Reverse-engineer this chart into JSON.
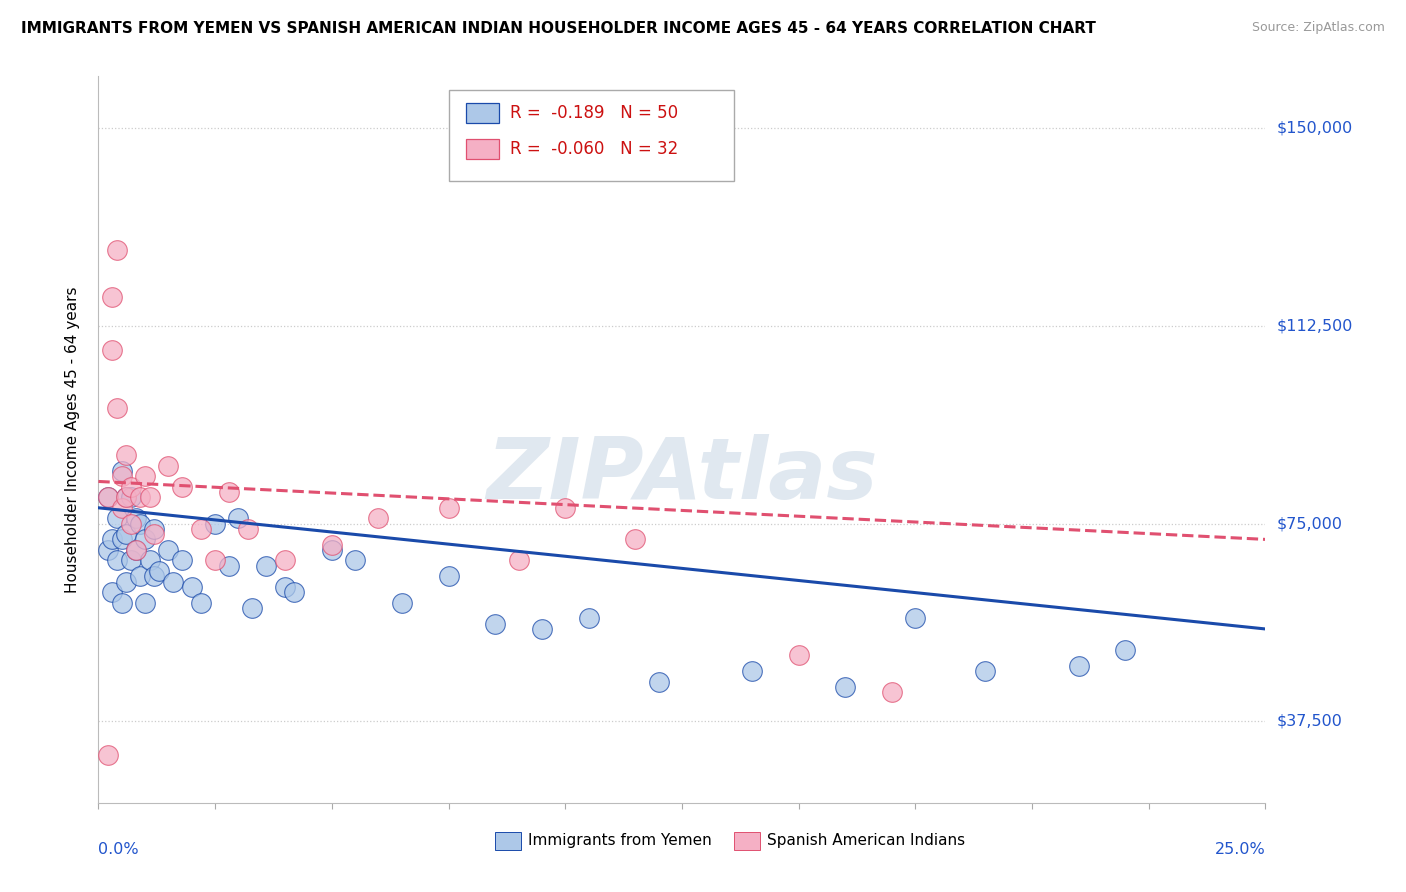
{
  "title": "IMMIGRANTS FROM YEMEN VS SPANISH AMERICAN INDIAN HOUSEHOLDER INCOME AGES 45 - 64 YEARS CORRELATION CHART",
  "source": "Source: ZipAtlas.com",
  "ylabel": "Householder Income Ages 45 - 64 years",
  "xmin": 0.0,
  "xmax": 0.25,
  "ymin": 22000,
  "ymax": 160000,
  "yticks": [
    37500,
    75000,
    112500,
    150000
  ],
  "ytick_labels": [
    "$37,500",
    "$75,000",
    "$112,500",
    "$150,000"
  ],
  "xticks_count": 11,
  "legend1_r": "-0.189",
  "legend1_n": "50",
  "legend2_r": "-0.060",
  "legend2_n": "32",
  "series1_color": "#adc8e8",
  "series2_color": "#f5b0c5",
  "trendline1_color": "#1a4aaa",
  "trendline2_color": "#e05070",
  "watermark_text": "ZIPAtlas",
  "watermark_color": "#e0e8f0",
  "series1_x": [
    0.002,
    0.002,
    0.003,
    0.003,
    0.004,
    0.004,
    0.005,
    0.005,
    0.005,
    0.006,
    0.006,
    0.006,
    0.007,
    0.007,
    0.008,
    0.008,
    0.009,
    0.009,
    0.01,
    0.01,
    0.011,
    0.012,
    0.012,
    0.013,
    0.015,
    0.016,
    0.018,
    0.02,
    0.022,
    0.025,
    0.028,
    0.03,
    0.033,
    0.036,
    0.04,
    0.042,
    0.05,
    0.055,
    0.065,
    0.075,
    0.085,
    0.095,
    0.105,
    0.12,
    0.14,
    0.16,
    0.175,
    0.19,
    0.21,
    0.22
  ],
  "series1_y": [
    80000,
    70000,
    62000,
    72000,
    76000,
    68000,
    85000,
    60000,
    72000,
    80000,
    73000,
    64000,
    80000,
    68000,
    76000,
    70000,
    75000,
    65000,
    72000,
    60000,
    68000,
    74000,
    65000,
    66000,
    70000,
    64000,
    68000,
    63000,
    60000,
    75000,
    67000,
    76000,
    59000,
    67000,
    63000,
    62000,
    70000,
    68000,
    60000,
    65000,
    56000,
    55000,
    57000,
    45000,
    47000,
    44000,
    57000,
    47000,
    48000,
    51000
  ],
  "series2_x": [
    0.002,
    0.002,
    0.003,
    0.003,
    0.004,
    0.004,
    0.005,
    0.005,
    0.006,
    0.006,
    0.007,
    0.007,
    0.008,
    0.009,
    0.01,
    0.011,
    0.012,
    0.015,
    0.018,
    0.022,
    0.025,
    0.028,
    0.032,
    0.04,
    0.05,
    0.06,
    0.075,
    0.09,
    0.1,
    0.115,
    0.15,
    0.17
  ],
  "series2_y": [
    31000,
    80000,
    118000,
    108000,
    97000,
    127000,
    78000,
    84000,
    88000,
    80000,
    75000,
    82000,
    70000,
    80000,
    84000,
    80000,
    73000,
    86000,
    82000,
    74000,
    68000,
    81000,
    74000,
    68000,
    71000,
    76000,
    78000,
    68000,
    78000,
    72000,
    50000,
    43000
  ],
  "trendline1_x0": 0.0,
  "trendline1_y0": 78000,
  "trendline1_x1": 0.25,
  "trendline1_y1": 55000,
  "trendline2_x0": 0.0,
  "trendline2_y0": 83000,
  "trendline2_x1": 0.25,
  "trendline2_y1": 72000
}
